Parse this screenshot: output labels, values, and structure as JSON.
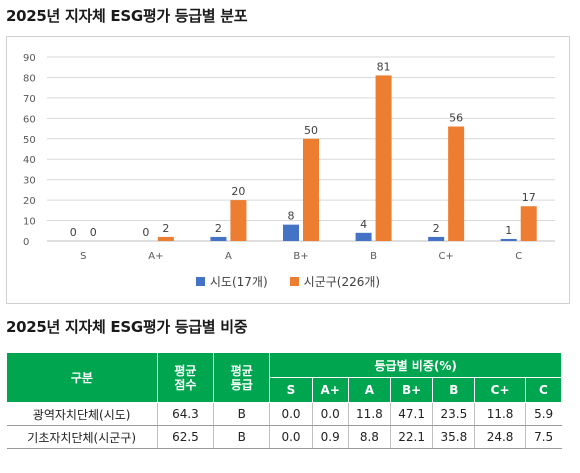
{
  "titles": {
    "chart_title": "2025년 지자체 ESG평가 등급별 분포",
    "table_title": "2025년 지자체 ESG평가 등급별 비중"
  },
  "colors": {
    "series1": "#4472c4",
    "series2": "#ed7d31",
    "header_bg": "#00a64f",
    "gridline": "#d9d9d9"
  },
  "chart_data": {
    "type": "bar",
    "categories": [
      "S",
      "A+",
      "A",
      "B+",
      "B",
      "C+",
      "C"
    ],
    "series": [
      {
        "name": "시도(17개)",
        "values": [
          0,
          0,
          2,
          8,
          4,
          2,
          1
        ]
      },
      {
        "name": "시군구(226개)",
        "values": [
          0,
          2,
          20,
          50,
          81,
          56,
          17
        ]
      }
    ],
    "ylim": [
      0,
      90
    ],
    "yticks": [
      0,
      10,
      20,
      30,
      40,
      50,
      60,
      70,
      80,
      90
    ],
    "legend_position": "bottom",
    "grid": true
  },
  "table": {
    "header": {
      "category": "구분",
      "avg_score_line1": "평균",
      "avg_score_line2": "점수",
      "avg_grade_line1": "평균",
      "avg_grade_line2": "등급",
      "share_group": "등급별 비중(%)",
      "grades": [
        "S",
        "A+",
        "A",
        "B+",
        "B",
        "C+",
        "C"
      ]
    },
    "rows": [
      {
        "name": "광역자치단체(시도)",
        "score": "64.3",
        "grade": "B",
        "shares": [
          "0.0",
          "0.0",
          "11.8",
          "47.1",
          "23.5",
          "11.8",
          "5.9"
        ]
      },
      {
        "name": "기초자치단체(시군구)",
        "score": "62.5",
        "grade": "B",
        "shares": [
          "0.0",
          "0.9",
          "8.8",
          "22.1",
          "35.8",
          "24.8",
          "7.5"
        ]
      }
    ]
  }
}
